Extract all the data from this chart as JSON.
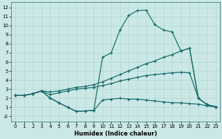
{
  "xlabel": "Humidex (Indice chaleur)",
  "bg_color": "#cce8e6",
  "line_color": "#1a6b6b",
  "grid_color": "#aad8d4",
  "xlim": [
    -0.5,
    23.5
  ],
  "ylim": [
    -0.6,
    12.6
  ],
  "xticks": [
    0,
    1,
    2,
    3,
    4,
    5,
    6,
    7,
    8,
    9,
    10,
    11,
    12,
    13,
    14,
    15,
    16,
    17,
    18,
    19,
    20,
    21,
    22,
    23
  ],
  "yticks": [
    0,
    1,
    2,
    3,
    4,
    5,
    6,
    7,
    8,
    9,
    10,
    11,
    12
  ],
  "ytick_labels": [
    "-0",
    "1",
    "2",
    "3",
    "4",
    "5",
    "6",
    "7",
    "8",
    "9",
    "10",
    "11",
    "12"
  ],
  "curve1_x": [
    0,
    1,
    2,
    3,
    4,
    5,
    6,
    7,
    8,
    9,
    10,
    11,
    12,
    13,
    14,
    15,
    16,
    17,
    18,
    19,
    20,
    21,
    22,
    23
  ],
  "curve1_y": [
    2.3,
    2.3,
    2.5,
    2.8,
    2.0,
    1.5,
    1.0,
    0.55,
    0.6,
    0.65,
    1.8,
    1.9,
    2.0,
    1.9,
    1.9,
    1.8,
    1.7,
    1.6,
    1.5,
    1.5,
    1.4,
    1.35,
    1.15,
    1.05
  ],
  "curve2_x": [
    0,
    1,
    2,
    3,
    4,
    5,
    6,
    7,
    8,
    9,
    10,
    11,
    12,
    13,
    14,
    15,
    16,
    17,
    18,
    19,
    20,
    21,
    22,
    23
  ],
  "curve2_y": [
    2.3,
    2.3,
    2.5,
    2.8,
    2.0,
    1.5,
    1.0,
    0.55,
    0.6,
    0.65,
    6.5,
    7.0,
    9.5,
    11.1,
    11.65,
    11.7,
    10.1,
    9.5,
    9.3,
    7.2,
    7.5,
    2.0,
    1.3,
    1.05
  ],
  "curve3_x": [
    0,
    1,
    2,
    3,
    4,
    5,
    6,
    7,
    8,
    9,
    10,
    11,
    12,
    13,
    14,
    15,
    16,
    17,
    18,
    19,
    20,
    21,
    22,
    23
  ],
  "curve3_y": [
    2.3,
    2.3,
    2.5,
    2.8,
    2.7,
    2.8,
    3.0,
    3.2,
    3.3,
    3.5,
    3.8,
    4.2,
    4.6,
    5.0,
    5.4,
    5.8,
    6.1,
    6.5,
    6.8,
    7.2,
    7.5,
    2.0,
    1.3,
    1.05
  ],
  "curve4_x": [
    0,
    1,
    2,
    3,
    4,
    5,
    6,
    7,
    8,
    9,
    10,
    11,
    12,
    13,
    14,
    15,
    16,
    17,
    18,
    19,
    20,
    21,
    22,
    23
  ],
  "curve4_y": [
    2.3,
    2.3,
    2.5,
    2.8,
    2.4,
    2.6,
    2.8,
    3.0,
    3.1,
    3.2,
    3.4,
    3.6,
    3.9,
    4.1,
    4.3,
    4.5,
    4.6,
    4.7,
    4.8,
    4.85,
    4.8,
    2.0,
    1.3,
    1.05
  ]
}
